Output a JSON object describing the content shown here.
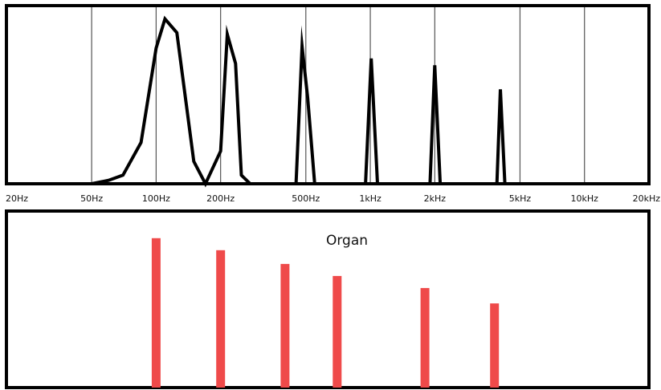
{
  "colors": {
    "frame": "#000000",
    "grid": "#555555",
    "spectrum_line": "#000000",
    "partial_bar": "#ef4a4a",
    "background": "#ffffff"
  },
  "chart_data": [
    {
      "type": "line",
      "title": "",
      "xlabel": "",
      "ylabel": "",
      "xscale": "log",
      "xlim": [
        20,
        20000
      ],
      "ylim": [
        0,
        1
      ],
      "grid": true,
      "x_ticks": [
        {
          "label": "20Hz",
          "value": 20
        },
        {
          "label": "50Hz",
          "value": 50
        },
        {
          "label": "100Hz",
          "value": 100
        },
        {
          "label": "200Hz",
          "value": 200
        },
        {
          "label": "500Hz",
          "value": 500
        },
        {
          "label": "1kHz",
          "value": 1000
        },
        {
          "label": "2kHz",
          "value": 2000
        },
        {
          "label": "5kHz",
          "value": 5000
        },
        {
          "label": "10kHz",
          "value": 10000
        },
        {
          "label": "20kHz",
          "value": 20000
        }
      ],
      "series": [
        {
          "x": [
            50,
            60,
            70,
            85,
            100,
            110,
            125,
            150,
            170,
            200,
            215,
            235,
            250,
            275,
            300,
            450,
            480,
            510,
            550,
            950,
            1010,
            1080,
            1900,
            2000,
            2120,
            3900,
            4050,
            4250
          ],
          "y": [
            0.0,
            0.02,
            0.05,
            0.24,
            0.79,
            0.96,
            0.88,
            0.13,
            0.0,
            0.19,
            0.87,
            0.7,
            0.05,
            0.0,
            0.0,
            0.0,
            0.8,
            0.5,
            0.0,
            0.0,
            0.73,
            0.0,
            0.0,
            0.69,
            0.0,
            0.0,
            0.55,
            0.0
          ]
        }
      ]
    },
    {
      "type": "bar",
      "title": "Organ",
      "xscale": "log",
      "xlim": [
        20,
        20000
      ],
      "ylim": [
        0,
        1
      ],
      "x": [
        100,
        200,
        400,
        700,
        1800,
        3800
      ],
      "values": [
        0.87,
        0.8,
        0.72,
        0.65,
        0.58,
        0.49
      ]
    }
  ]
}
